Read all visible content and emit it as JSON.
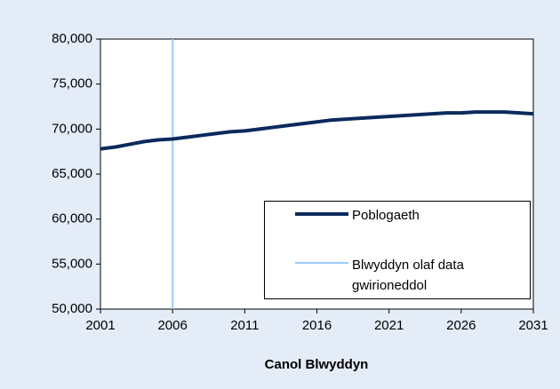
{
  "chart_data": {
    "type": "line",
    "xlabel": "Canol Blwyddyn",
    "x": [
      2001,
      2002,
      2003,
      2004,
      2005,
      2006,
      2007,
      2008,
      2009,
      2010,
      2011,
      2012,
      2013,
      2014,
      2015,
      2016,
      2017,
      2018,
      2019,
      2020,
      2021,
      2022,
      2023,
      2024,
      2025,
      2026,
      2027,
      2028,
      2029,
      2030,
      2031
    ],
    "series": [
      {
        "name": "Poblogaeth",
        "color": "#0b2a5c",
        "values": [
          67800,
          68000,
          68300,
          68600,
          68800,
          68900,
          69100,
          69300,
          69500,
          69700,
          69800,
          70000,
          70200,
          70400,
          70600,
          70800,
          71000,
          71100,
          71200,
          71300,
          71400,
          71500,
          71600,
          71700,
          71800,
          71800,
          71900,
          71900,
          71900,
          71800,
          71700
        ]
      },
      {
        "name": "Blwyddyn olaf data gwirioneddol",
        "color": "#99ccff",
        "x": [
          2006,
          2006
        ],
        "values": [
          50000,
          80000
        ]
      }
    ],
    "xlim": [
      2001,
      2031
    ],
    "xticks": [
      2001,
      2006,
      2011,
      2016,
      2021,
      2026,
      2031
    ],
    "ylim": [
      50000,
      80000
    ],
    "yticks": [
      {
        "value": 50000,
        "label": "50,000"
      },
      {
        "value": 55000,
        "label": "55,000"
      },
      {
        "value": 60000,
        "label": "60,000"
      },
      {
        "value": 65000,
        "label": "65,000"
      },
      {
        "value": 70000,
        "label": "70,000"
      },
      {
        "value": 75000,
        "label": "75,000"
      },
      {
        "value": 80000,
        "label": "80,000"
      }
    ],
    "legend": "lower right"
  }
}
